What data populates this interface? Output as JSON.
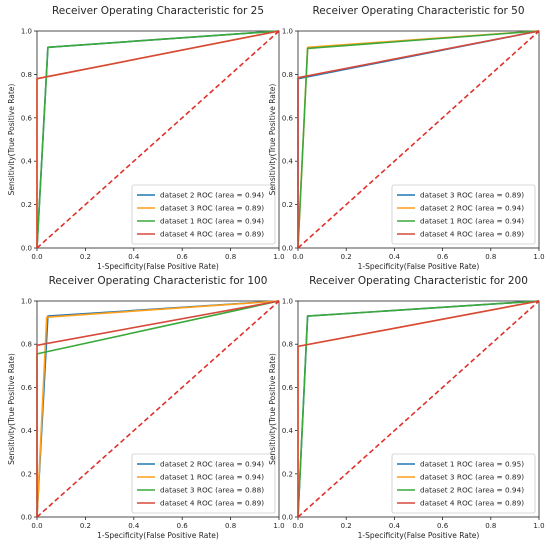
{
  "figure": {
    "colors": {
      "blue": "#1f77b4",
      "orange": "#ff9f1c",
      "green": "#3aa83a",
      "red": "#d6493b",
      "diagonal": "#e0302a"
    }
  },
  "chart_data": [
    {
      "type": "line",
      "title": "Receiver Operating Characteristic for 25",
      "xlabel": "1-Specificity(False Positive Rate)",
      "ylabel": "Sensitivity(True Positive Rate)",
      "xlim": [
        0,
        1
      ],
      "ylim": [
        0,
        1
      ],
      "x_ticks": [
        "0.0",
        "0.2",
        "0.4",
        "0.6",
        "0.8",
        "1.0"
      ],
      "y_ticks": [
        "0.0",
        "0.2",
        "0.4",
        "0.6",
        "0.8",
        "1.0"
      ],
      "legend_position": "lower-right",
      "grid": false,
      "series": [
        {
          "name": "dataset 2 ROC (area = 0.94)",
          "color": "#1f77b4",
          "x": [
            0,
            0.045,
            1
          ],
          "y": [
            0,
            0.925,
            1
          ]
        },
        {
          "name": "dataset 3 ROC (area = 0.89)",
          "color": "#ff9f1c",
          "x": [
            0,
            0,
            1
          ],
          "y": [
            0,
            0.78,
            1
          ]
        },
        {
          "name": "dataset 1 ROC (area = 0.94)",
          "color": "#3aa83a",
          "x": [
            0,
            0.045,
            1
          ],
          "y": [
            0,
            0.925,
            1
          ]
        },
        {
          "name": "dataset 4 ROC (area = 0.89)",
          "color": "#d6493b",
          "x": [
            0,
            0,
            1
          ],
          "y": [
            0,
            0.78,
            1
          ]
        }
      ]
    },
    {
      "type": "line",
      "title": "Receiver Operating Characteristic for 50",
      "xlabel": "1-Specificity(False Positive Rate)",
      "ylabel": "Sensitivity(True Positive Rate)",
      "xlim": [
        0,
        1
      ],
      "ylim": [
        0,
        1
      ],
      "x_ticks": [
        "0.0",
        "0.2",
        "0.4",
        "0.6",
        "0.8",
        "1.0"
      ],
      "y_ticks": [
        "0.0",
        "0.2",
        "0.4",
        "0.6",
        "0.8",
        "1.0"
      ],
      "legend_position": "lower-right",
      "grid": false,
      "series": [
        {
          "name": "dataset 3 ROC (area = 0.89)",
          "color": "#1f77b4",
          "x": [
            0,
            0,
            1
          ],
          "y": [
            0,
            0.78,
            1
          ]
        },
        {
          "name": "dataset 2 ROC (area = 0.94)",
          "color": "#ff9f1c",
          "x": [
            0,
            0.04,
            1
          ],
          "y": [
            0,
            0.925,
            1
          ]
        },
        {
          "name": "dataset 1 ROC (area = 0.94)",
          "color": "#3aa83a",
          "x": [
            0,
            0.04,
            1
          ],
          "y": [
            0,
            0.92,
            1
          ]
        },
        {
          "name": "dataset 4 ROC (area = 0.89)",
          "color": "#d6493b",
          "x": [
            0,
            0,
            1
          ],
          "y": [
            0,
            0.785,
            1
          ]
        }
      ]
    },
    {
      "type": "line",
      "title": "Receiver Operating Characteristic for 100",
      "xlabel": "1-Specificity(False Positive Rate)",
      "ylabel": "Sensitivity(True Positive Rate)",
      "xlim": [
        0,
        1
      ],
      "ylim": [
        0,
        1
      ],
      "x_ticks": [
        "0.0",
        "0.2",
        "0.4",
        "0.6",
        "0.8",
        "1.0"
      ],
      "y_ticks": [
        "0.0",
        "0.2",
        "0.4",
        "0.6",
        "0.8",
        "1.0"
      ],
      "legend_position": "lower-right",
      "grid": false,
      "series": [
        {
          "name": "dataset 2 ROC (area = 0.94)",
          "color": "#1f77b4",
          "x": [
            0,
            0.045,
            1
          ],
          "y": [
            0,
            0.93,
            1
          ]
        },
        {
          "name": "dataset 1 ROC (area = 0.94)",
          "color": "#ff9f1c",
          "x": [
            0,
            0.04,
            1
          ],
          "y": [
            0,
            0.925,
            1
          ]
        },
        {
          "name": "dataset 3 ROC (area = 0.88)",
          "color": "#3aa83a",
          "x": [
            0,
            0,
            1
          ],
          "y": [
            0,
            0.755,
            1
          ]
        },
        {
          "name": "dataset 4 ROC (area = 0.89)",
          "color": "#d6493b",
          "x": [
            0,
            0,
            1
          ],
          "y": [
            0,
            0.795,
            1
          ]
        }
      ]
    },
    {
      "type": "line",
      "title": "Receiver Operating Characteristic for 200",
      "xlabel": "1-Specificity(False Positive Rate)",
      "ylabel": "Sensitivity(True Positive Rate)",
      "xlim": [
        0,
        1
      ],
      "ylim": [
        0,
        1
      ],
      "x_ticks": [
        "0.0",
        "0.2",
        "0.4",
        "0.6",
        "0.8",
        "1.0"
      ],
      "y_ticks": [
        "0.0",
        "0.2",
        "0.4",
        "0.6",
        "0.8",
        "1.0"
      ],
      "legend_position": "lower-right",
      "grid": false,
      "series": [
        {
          "name": "dataset 1 ROC (area = 0.95)",
          "color": "#1f77b4",
          "x": [
            0,
            0.04,
            1
          ],
          "y": [
            0,
            0.93,
            1
          ]
        },
        {
          "name": "dataset 3 ROC (area = 0.89)",
          "color": "#ff9f1c",
          "x": [
            0,
            0,
            1
          ],
          "y": [
            0,
            0.79,
            1
          ]
        },
        {
          "name": "dataset 2 ROC (area = 0.94)",
          "color": "#3aa83a",
          "x": [
            0,
            0.04,
            1
          ],
          "y": [
            0,
            0.93,
            1
          ]
        },
        {
          "name": "dataset 4 ROC (area = 0.89)",
          "color": "#d6493b",
          "x": [
            0,
            0,
            1
          ],
          "y": [
            0,
            0.79,
            1
          ]
        }
      ]
    }
  ]
}
